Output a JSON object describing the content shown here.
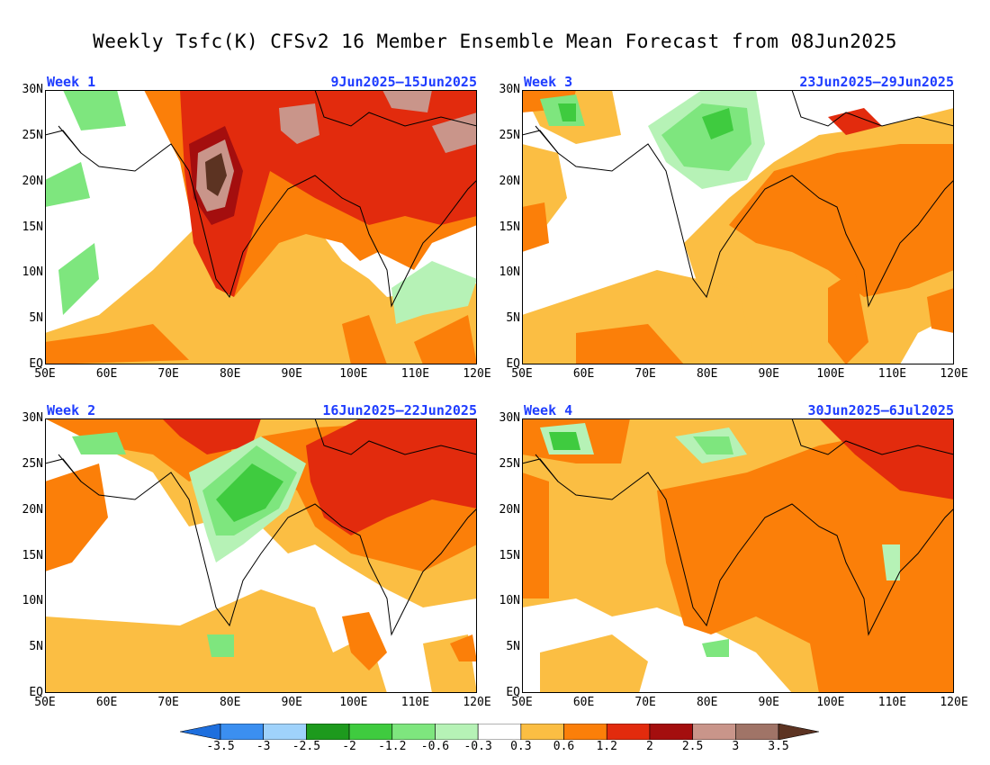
{
  "title": "Weekly Tsfc(K) CFSv2 16 Member Ensemble Mean Forecast from 08Jun2025",
  "panels": [
    {
      "label": "Week 1",
      "dates": "9Jun2025–15Jun2025"
    },
    {
      "label": "Week 3",
      "dates": "23Jun2025–29Jun2025"
    },
    {
      "label": "Week 2",
      "dates": "16Jun2025–22Jun2025"
    },
    {
      "label": "Week 4",
      "dates": "30Jun2025–6Jul2025"
    }
  ],
  "lat_ticks": [
    "30N",
    "25N",
    "20N",
    "15N",
    "10N",
    "5N",
    "EQ"
  ],
  "lon_ticks": [
    "50E",
    "60E",
    "70E",
    "80E",
    "90E",
    "100E",
    "110E",
    "120E"
  ],
  "colorbar": {
    "labels": [
      "-3.5",
      "-3",
      "-2.5",
      "-2",
      "-1.2",
      "-0.6",
      "-0.3",
      "0.3",
      "0.6",
      "1.2",
      "2",
      "2.5",
      "3",
      "3.5"
    ],
    "colors": [
      "#1e6fde",
      "#3b8ff0",
      "#9fd2fb",
      "#1d9a1d",
      "#3fcb3f",
      "#7ee67e",
      "#b6f2b6",
      "#ffffff",
      "#fbbe43",
      "#fb7f09",
      "#e22b0d",
      "#a40e0e",
      "#c9958a",
      "#a07467",
      "#5c3322"
    ]
  }
}
